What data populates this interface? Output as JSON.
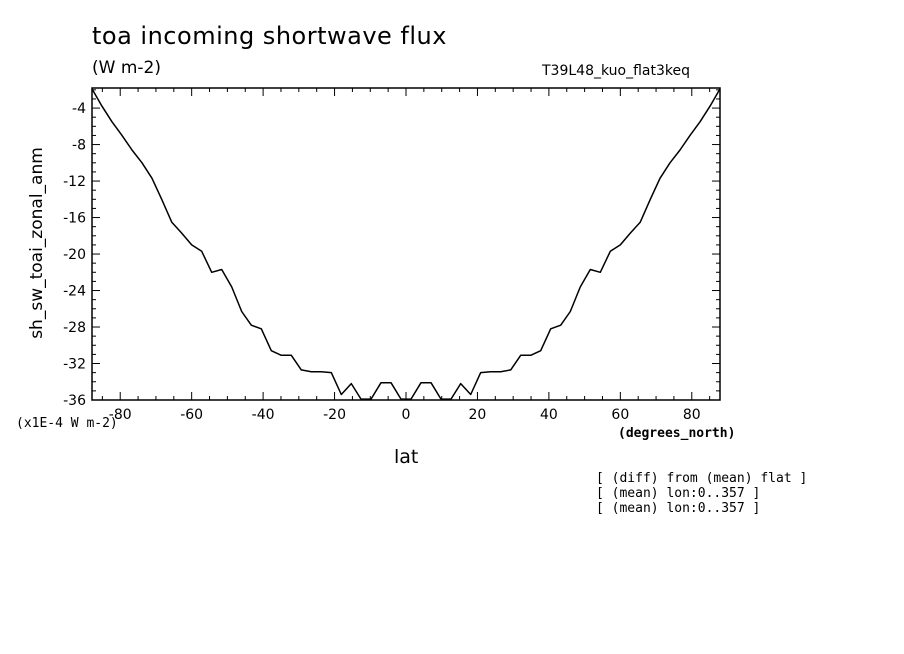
{
  "chart_data": {
    "type": "line",
    "title": "toa incoming shortwave flux",
    "subtitle": "(W m-2)",
    "run_name": "T39L48_kuo_flat3keq",
    "xlabel": "lat",
    "xunits": "(degrees_north)",
    "ylabel": "sh_sw_toai_zonal_anm",
    "yscale_label": "(x1E-4 W m-2)",
    "xlim": [
      -87.9,
      87.9
    ],
    "ylim": [
      -36,
      -1.8
    ],
    "xticks": [
      -80,
      -60,
      -40,
      -20,
      0,
      20,
      40,
      60,
      80
    ],
    "xtick_labels": [
      "-80",
      "-60",
      "-40",
      "-20",
      "0",
      "20",
      "40",
      "60",
      "80"
    ],
    "yticks": [
      -4,
      -8,
      -12,
      -16,
      -20,
      -24,
      -28,
      -32,
      -36
    ],
    "ytick_labels": [
      "-4",
      "-8",
      "-12",
      "-16",
      "-20",
      "-24",
      "-28",
      "-32",
      "-36"
    ],
    "grid": false,
    "series": [
      {
        "x": [
          -87.9,
          -85.1,
          -82.3,
          -79.5,
          -76.7,
          -73.9,
          -71.1,
          -68.4,
          -65.6,
          -62.8,
          -60.0,
          -57.2,
          -54.4,
          -51.6,
          -48.8,
          -46.0,
          -43.3,
          -40.5,
          -37.7,
          -34.9,
          -32.1,
          -29.3,
          -26.5,
          -23.7,
          -20.9,
          -18.1,
          -15.3,
          -12.6,
          -9.8,
          -7.0,
          -4.2,
          -1.4,
          1.4,
          4.2,
          7.0,
          9.8,
          12.6,
          15.3,
          18.1,
          20.9,
          23.7,
          26.5,
          29.3,
          32.1,
          34.9,
          37.7,
          40.5,
          43.3,
          46.0,
          48.8,
          51.6,
          54.4,
          57.2,
          60.0,
          62.8,
          65.6,
          68.4,
          71.1,
          73.9,
          76.7,
          79.5,
          82.3,
          85.1,
          87.9
        ],
        "y": [
          -1.9,
          -3.8,
          -5.5,
          -7.0,
          -8.6,
          -10.0,
          -11.7,
          -14.0,
          -16.5,
          -17.7,
          -19.0,
          -19.7,
          -22.0,
          -21.7,
          -23.6,
          -26.3,
          -27.8,
          -28.2,
          -30.6,
          -31.1,
          -31.1,
          -32.7,
          -32.9,
          -32.9,
          -33.0,
          -35.4,
          -34.2,
          -35.9,
          -35.9,
          -34.1,
          -34.1,
          -35.9,
          -35.9,
          -34.1,
          -34.1,
          -35.9,
          -35.9,
          -34.2,
          -35.4,
          -33.0,
          -32.9,
          -32.9,
          -32.7,
          -31.1,
          -31.1,
          -30.6,
          -28.2,
          -27.8,
          -26.3,
          -23.6,
          -21.7,
          -22.0,
          -19.7,
          -19.0,
          -17.7,
          -16.5,
          -14.0,
          -11.7,
          -10.0,
          -8.6,
          -7.0,
          -5.5,
          -3.8,
          -1.9
        ]
      }
    ]
  },
  "notes": [
    "[ (diff) from (mean) flat ]",
    "[ (mean) lon:0..357 ]",
    "[ (mean) lon:0..357 ]"
  ],
  "colors": {
    "line": "#000000",
    "axes": "#000000",
    "background": "#ffffff"
  }
}
